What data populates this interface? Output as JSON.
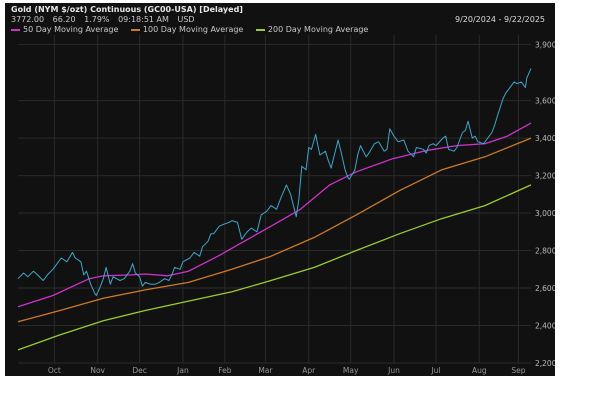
{
  "header": {
    "title": "Gold (NYM $/ozt) Continuous (GC00-USA) [Delayed]",
    "last": "3772.00",
    "change": "66.20",
    "pct": "1.79%",
    "time": "09:18:51 AM",
    "currency": "USD",
    "daterange": "9/20/2024 - 9/22/2025"
  },
  "legend": [
    {
      "label": "50 Day Moving Average",
      "color": "#cc33cc"
    },
    {
      "label": "100 Day Moving Average",
      "color": "#cc7a29"
    },
    {
      "label": "200 Day Moving Average",
      "color": "#99cc33"
    }
  ],
  "colors": {
    "price": "#3ea6c9",
    "background": "#111111",
    "grid": "#2a2a2a"
  },
  "chart_data": {
    "type": "line",
    "title": "Gold (NYM $/ozt) Continuous (GC00-USA) [Delayed]",
    "x_start": "2024-09-20",
    "x_end": "2025-09-22",
    "ylim": [
      2200,
      3950
    ],
    "y_ticks": [
      2200,
      2400,
      2600,
      2800,
      3000,
      3200,
      3400,
      3600,
      3900
    ],
    "y_tick_labels": [
      "2,200",
      "2,400",
      "2,600",
      "2,800",
      "3,000",
      "3,200",
      "3,400",
      "3,600",
      "3,900"
    ],
    "x_ticks": [
      {
        "label": "Oct",
        "date": "2024-10-16"
      },
      {
        "label": "Nov",
        "date": "2024-11-16"
      },
      {
        "label": "Dec",
        "date": "2024-12-16"
      },
      {
        "label": "Jan",
        "date": "2025-01-16"
      },
      {
        "label": "Feb",
        "date": "2025-02-15"
      },
      {
        "label": "Mar",
        "date": "2025-03-16"
      },
      {
        "label": "Apr",
        "date": "2025-04-16"
      },
      {
        "label": "May",
        "date": "2025-05-16"
      },
      {
        "label": "Jun",
        "date": "2025-06-16"
      },
      {
        "label": "Jul",
        "date": "2025-07-16"
      },
      {
        "label": "Aug",
        "date": "2025-08-16"
      },
      {
        "label": "Sep",
        "date": "2025-09-13"
      }
    ],
    "grid": true,
    "legend_position": "top-left",
    "series": [
      {
        "name": "Price",
        "color": "#3ea6c9",
        "points": [
          [
            "2024-09-20",
            2650
          ],
          [
            "2024-09-24",
            2680
          ],
          [
            "2024-09-27",
            2660
          ],
          [
            "2024-10-01",
            2690
          ],
          [
            "2024-10-04",
            2670
          ],
          [
            "2024-10-08",
            2640
          ],
          [
            "2024-10-11",
            2670
          ],
          [
            "2024-10-15",
            2700
          ],
          [
            "2024-10-18",
            2730
          ],
          [
            "2024-10-21",
            2760
          ],
          [
            "2024-10-25",
            2740
          ],
          [
            "2024-10-29",
            2790
          ],
          [
            "2024-10-31",
            2760
          ],
          [
            "2024-11-04",
            2740
          ],
          [
            "2024-11-06",
            2670
          ],
          [
            "2024-11-08",
            2690
          ],
          [
            "2024-11-11",
            2620
          ],
          [
            "2024-11-14",
            2570
          ],
          [
            "2024-11-15",
            2560
          ],
          [
            "2024-11-18",
            2610
          ],
          [
            "2024-11-20",
            2650
          ],
          [
            "2024-11-22",
            2710
          ],
          [
            "2024-11-25",
            2620
          ],
          [
            "2024-11-27",
            2660
          ],
          [
            "2024-12-02",
            2640
          ],
          [
            "2024-12-05",
            2650
          ],
          [
            "2024-12-09",
            2690
          ],
          [
            "2024-12-11",
            2730
          ],
          [
            "2024-12-13",
            2680
          ],
          [
            "2024-12-16",
            2660
          ],
          [
            "2024-12-18",
            2610
          ],
          [
            "2024-12-20",
            2630
          ],
          [
            "2024-12-24",
            2620
          ],
          [
            "2024-12-27",
            2620
          ],
          [
            "2024-12-30",
            2630
          ],
          [
            "2025-01-03",
            2650
          ],
          [
            "2025-01-06",
            2640
          ],
          [
            "2025-01-08",
            2670
          ],
          [
            "2025-01-10",
            2710
          ],
          [
            "2025-01-14",
            2700
          ],
          [
            "2025-01-16",
            2740
          ],
          [
            "2025-01-21",
            2760
          ],
          [
            "2025-01-24",
            2790
          ],
          [
            "2025-01-28",
            2770
          ],
          [
            "2025-01-30",
            2820
          ],
          [
            "2025-02-03",
            2850
          ],
          [
            "2025-02-05",
            2890
          ],
          [
            "2025-02-07",
            2890
          ],
          [
            "2025-02-11",
            2930
          ],
          [
            "2025-02-14",
            2940
          ],
          [
            "2025-02-18",
            2950
          ],
          [
            "2025-02-20",
            2960
          ],
          [
            "2025-02-24",
            2950
          ],
          [
            "2025-02-27",
            2860
          ],
          [
            "2025-03-03",
            2900
          ],
          [
            "2025-03-06",
            2920
          ],
          [
            "2025-03-10",
            2900
          ],
          [
            "2025-03-13",
            2990
          ],
          [
            "2025-03-17",
            3010
          ],
          [
            "2025-03-20",
            3040
          ],
          [
            "2025-03-24",
            3020
          ],
          [
            "2025-03-27",
            3080
          ],
          [
            "2025-03-31",
            3150
          ],
          [
            "2025-04-03",
            3100
          ],
          [
            "2025-04-07",
            2980
          ],
          [
            "2025-04-09",
            3080
          ],
          [
            "2025-04-11",
            3250
          ],
          [
            "2025-04-14",
            3230
          ],
          [
            "2025-04-16",
            3350
          ],
          [
            "2025-04-18",
            3340
          ],
          [
            "2025-04-21",
            3420
          ],
          [
            "2025-04-22",
            3380
          ],
          [
            "2025-04-24",
            3310
          ],
          [
            "2025-04-28",
            3330
          ],
          [
            "2025-04-30",
            3280
          ],
          [
            "2025-05-02",
            3240
          ],
          [
            "2025-05-05",
            3330
          ],
          [
            "2025-05-07",
            3390
          ],
          [
            "2025-05-09",
            3330
          ],
          [
            "2025-05-12",
            3230
          ],
          [
            "2025-05-14",
            3190
          ],
          [
            "2025-05-15",
            3180
          ],
          [
            "2025-05-19",
            3230
          ],
          [
            "2025-05-21",
            3310
          ],
          [
            "2025-05-23",
            3360
          ],
          [
            "2025-05-27",
            3300
          ],
          [
            "2025-05-29",
            3320
          ],
          [
            "2025-06-02",
            3370
          ],
          [
            "2025-06-05",
            3380
          ],
          [
            "2025-06-09",
            3330
          ],
          [
            "2025-06-11",
            3340
          ],
          [
            "2025-06-13",
            3450
          ],
          [
            "2025-06-16",
            3410
          ],
          [
            "2025-06-19",
            3380
          ],
          [
            "2025-06-23",
            3390
          ],
          [
            "2025-06-26",
            3330
          ],
          [
            "2025-06-30",
            3300
          ],
          [
            "2025-07-02",
            3350
          ],
          [
            "2025-07-07",
            3340
          ],
          [
            "2025-07-09",
            3320
          ],
          [
            "2025-07-11",
            3360
          ],
          [
            "2025-07-14",
            3370
          ],
          [
            "2025-07-16",
            3360
          ],
          [
            "2025-07-21",
            3400
          ],
          [
            "2025-07-23",
            3410
          ],
          [
            "2025-07-25",
            3340
          ],
          [
            "2025-07-29",
            3330
          ],
          [
            "2025-07-31",
            3350
          ],
          [
            "2025-08-04",
            3430
          ],
          [
            "2025-08-06",
            3440
          ],
          [
            "2025-08-08",
            3490
          ],
          [
            "2025-08-11",
            3400
          ],
          [
            "2025-08-13",
            3410
          ],
          [
            "2025-08-15",
            3380
          ],
          [
            "2025-08-19",
            3370
          ],
          [
            "2025-08-21",
            3390
          ],
          [
            "2025-08-25",
            3430
          ],
          [
            "2025-08-27",
            3470
          ],
          [
            "2025-08-29",
            3520
          ],
          [
            "2025-09-02",
            3610
          ],
          [
            "2025-09-04",
            3640
          ],
          [
            "2025-09-08",
            3680
          ],
          [
            "2025-09-10",
            3700
          ],
          [
            "2025-09-12",
            3690
          ],
          [
            "2025-09-15",
            3700
          ],
          [
            "2025-09-17",
            3680
          ],
          [
            "2025-09-18",
            3670
          ],
          [
            "2025-09-19",
            3720
          ],
          [
            "2025-09-22",
            3772
          ]
        ]
      },
      {
        "name": "50 Day Moving Average",
        "color": "#cc33cc",
        "points": [
          [
            "2024-09-20",
            2500
          ],
          [
            "2024-10-15",
            2560
          ],
          [
            "2024-11-10",
            2650
          ],
          [
            "2024-11-20",
            2665
          ],
          [
            "2024-12-10",
            2670
          ],
          [
            "2024-12-20",
            2675
          ],
          [
            "2025-01-05",
            2665
          ],
          [
            "2025-01-20",
            2690
          ],
          [
            "2025-02-10",
            2770
          ],
          [
            "2025-03-01",
            2850
          ],
          [
            "2025-03-20",
            2930
          ],
          [
            "2025-04-10",
            3020
          ],
          [
            "2025-05-01",
            3150
          ],
          [
            "2025-05-20",
            3220
          ],
          [
            "2025-06-15",
            3290
          ],
          [
            "2025-07-10",
            3335
          ],
          [
            "2025-07-31",
            3360
          ],
          [
            "2025-08-20",
            3370
          ],
          [
            "2025-09-05",
            3410
          ],
          [
            "2025-09-22",
            3480
          ]
        ]
      },
      {
        "name": "100 Day Moving Average",
        "color": "#cc7a29",
        "points": [
          [
            "2024-09-20",
            2420
          ],
          [
            "2024-10-20",
            2480
          ],
          [
            "2024-11-20",
            2545
          ],
          [
            "2024-12-20",
            2590
          ],
          [
            "2025-01-20",
            2630
          ],
          [
            "2025-02-20",
            2700
          ],
          [
            "2025-03-20",
            2770
          ],
          [
            "2025-04-20",
            2870
          ],
          [
            "2025-05-20",
            2990
          ],
          [
            "2025-06-20",
            3120
          ],
          [
            "2025-07-20",
            3230
          ],
          [
            "2025-08-20",
            3300
          ],
          [
            "2025-09-22",
            3400
          ]
        ]
      },
      {
        "name": "200 Day Moving Average",
        "color": "#99cc33",
        "points": [
          [
            "2024-09-20",
            2270
          ],
          [
            "2024-10-20",
            2350
          ],
          [
            "2024-11-20",
            2425
          ],
          [
            "2024-12-20",
            2480
          ],
          [
            "2025-01-20",
            2530
          ],
          [
            "2025-02-20",
            2580
          ],
          [
            "2025-03-20",
            2640
          ],
          [
            "2025-04-20",
            2710
          ],
          [
            "2025-05-20",
            2800
          ],
          [
            "2025-06-20",
            2890
          ],
          [
            "2025-07-20",
            2970
          ],
          [
            "2025-08-20",
            3040
          ],
          [
            "2025-09-22",
            3150
          ]
        ]
      }
    ]
  }
}
